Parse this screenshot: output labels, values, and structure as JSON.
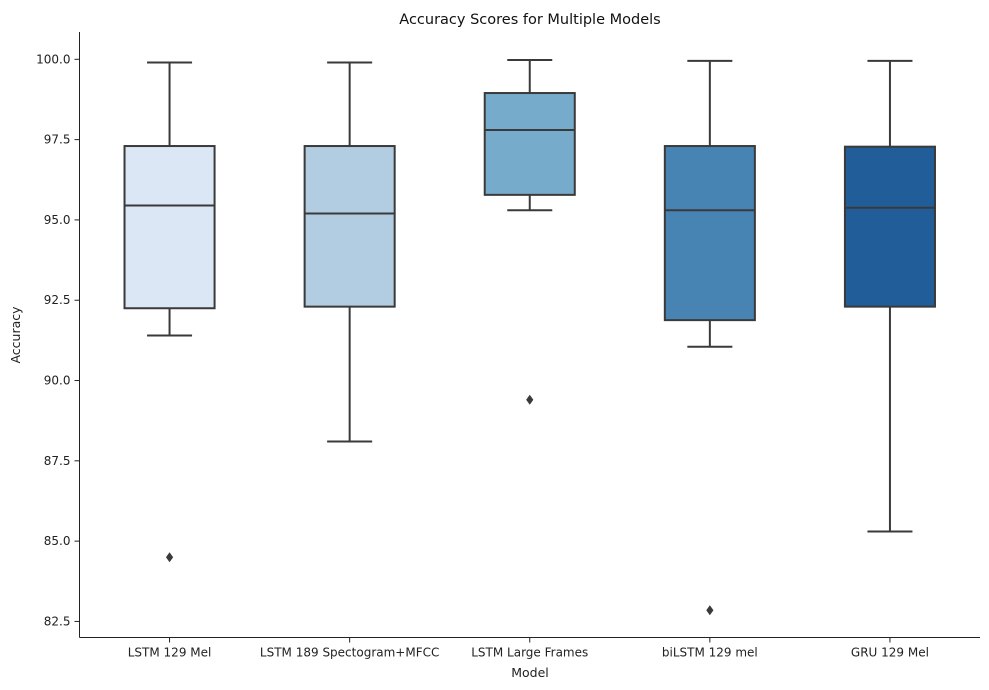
{
  "chart_data": {
    "type": "box",
    "title": "Accuracy Scores for Multiple Models",
    "xlabel": "Model",
    "ylabel": "Accuracy",
    "ylim": [
      82.0,
      100.85
    ],
    "yticks": [
      82.5,
      85.0,
      87.5,
      90.0,
      92.5,
      95.0,
      97.5,
      100.0
    ],
    "ytick_labels": [
      "82.5",
      "85.0",
      "87.5",
      "90.0",
      "92.5",
      "95.0",
      "97.5",
      "100.0"
    ],
    "grid": false,
    "categories": [
      "LSTM 129 Mel",
      "LSTM 189 Spectogram+MFCC",
      "LSTM Large Frames",
      "biLSTM 129 mel",
      "GRU 129 Mel"
    ],
    "boxes": [
      {
        "whisker_low": 91.4,
        "q1": 92.25,
        "median": 95.45,
        "q3": 97.3,
        "whisker_high": 99.9,
        "outliers": [
          84.5
        ],
        "color": "#dbe7f4"
      },
      {
        "whisker_low": 88.1,
        "q1": 92.3,
        "median": 95.2,
        "q3": 97.3,
        "whisker_high": 99.9,
        "outliers": [],
        "color": "#b2cde1"
      },
      {
        "whisker_low": 95.3,
        "q1": 95.78,
        "median": 97.8,
        "q3": 98.95,
        "whisker_high": 99.98,
        "outliers": [
          89.4
        ],
        "color": "#77abcb"
      },
      {
        "whisker_low": 91.05,
        "q1": 91.88,
        "median": 95.3,
        "q3": 97.3,
        "whisker_high": 99.95,
        "outliers": [
          82.85
        ],
        "color": "#4784b4"
      },
      {
        "whisker_low": 85.3,
        "q1": 92.3,
        "median": 95.38,
        "q3": 97.28,
        "whisker_high": 99.95,
        "outliers": [],
        "color": "#215d98"
      }
    ]
  }
}
